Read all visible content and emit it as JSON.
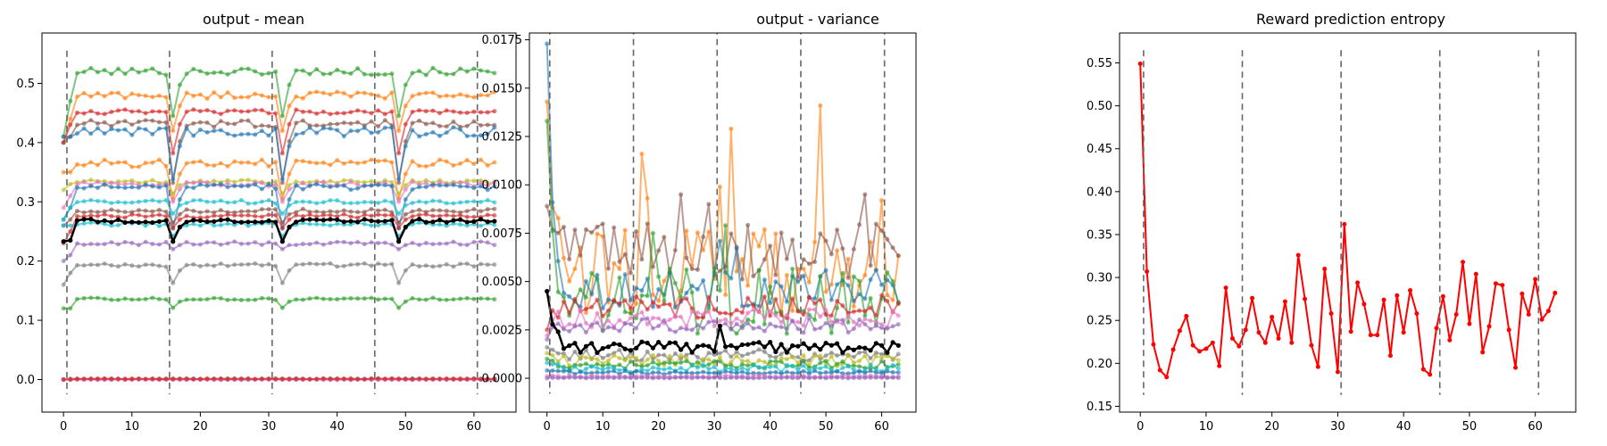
{
  "chart_data": [
    {
      "type": "line",
      "title": "output - mean",
      "xlabel": "",
      "ylabel": "",
      "xlim": [
        -3.15,
        66.15
      ],
      "ylim": [
        -0.055,
        0.585
      ],
      "xticks": [
        0,
        10,
        20,
        30,
        40,
        50,
        60
      ],
      "yticks": [
        0.0,
        0.1,
        0.2,
        0.3,
        0.4,
        0.5
      ],
      "ytick_labels": [
        "0.0",
        "0.1",
        "0.2",
        "0.3",
        "0.4",
        "0.5"
      ],
      "episode_boundaries": [
        0.5,
        15.5,
        30.5,
        45.5,
        60.5
      ],
      "boundary_range": [
        -0.025,
        0.555
      ],
      "n_points": 64,
      "dip_steps": [
        16,
        32,
        49
      ],
      "series": [
        {
          "color": "#2ca02c",
          "alpha": 0.6,
          "base": 0.52,
          "dip": 0.075,
          "noise": 0.006,
          "start": 0.41,
          "start_step": 0.47
        },
        {
          "color": "#ff7f0e",
          "alpha": 0.6,
          "base": 0.48,
          "dip": 0.06,
          "noise": 0.006,
          "start": 0.4,
          "start_step": 0.44
        },
        {
          "color": "#d62728",
          "alpha": 0.6,
          "base": 0.452,
          "dip": 0.07,
          "noise": 0.004,
          "start": 0.4,
          "start_step": 0.43
        },
        {
          "color": "#8c564b",
          "alpha": 0.6,
          "base": 0.432,
          "dip": 0.1,
          "noise": 0.006,
          "start": 0.4,
          "start_step": 0.41
        },
        {
          "color": "#1f77b4",
          "alpha": 0.6,
          "base": 0.418,
          "dip": 0.08,
          "noise": 0.008,
          "start": 0.41,
          "start_step": 0.41
        },
        {
          "color": "#ff7f0e",
          "alpha": 0.6,
          "base": 0.365,
          "dip": 0.06,
          "noise": 0.006,
          "start": 0.35,
          "start_step": 0.35
        },
        {
          "color": "#bcbd22",
          "alpha": 0.6,
          "base": 0.334,
          "dip": 0.02,
          "noise": 0.003,
          "start": 0.32,
          "start_step": 0.33
        },
        {
          "color": "#e377c2",
          "alpha": 0.6,
          "base": 0.33,
          "dip": 0.03,
          "noise": 0.004,
          "start": 0.29,
          "start_step": 0.31
        },
        {
          "color": "#1f77b4",
          "alpha": 0.6,
          "base": 0.325,
          "dip": 0.07,
          "noise": 0.005,
          "start": 0.27,
          "start_step": 0.29
        },
        {
          "color": "#17becf",
          "alpha": 0.6,
          "base": 0.3,
          "dip": 0.02,
          "noise": 0.003,
          "start": 0.27,
          "start_step": 0.29
        },
        {
          "color": "#8c564b",
          "alpha": 0.6,
          "base": 0.285,
          "dip": 0.02,
          "noise": 0.003,
          "start": 0.26,
          "start_step": 0.27
        },
        {
          "color": "#d62728",
          "alpha": 0.6,
          "base": 0.276,
          "dip": 0.02,
          "noise": 0.003,
          "start": 0.23,
          "start_step": 0.25
        },
        {
          "color": "#17becf",
          "alpha": 0.6,
          "base": 0.262,
          "dip": 0.02,
          "noise": 0.003,
          "start": 0.26,
          "start_step": 0.26
        },
        {
          "color": "#9467bd",
          "alpha": 0.6,
          "base": 0.23,
          "dip": 0.01,
          "noise": 0.003,
          "start": 0.2,
          "start_step": 0.21
        },
        {
          "color": "#7f7f7f",
          "alpha": 0.6,
          "base": 0.193,
          "dip": 0.03,
          "noise": 0.003,
          "start": 0.16,
          "start_step": 0.18
        },
        {
          "color": "#2ca02c",
          "alpha": 0.6,
          "base": 0.136,
          "dip": 0.015,
          "noise": 0.002,
          "start": 0.12,
          "start_step": 0.12
        },
        {
          "color": "#1f77b4",
          "alpha": 0.6,
          "base": 0.001,
          "dip": 0.0,
          "noise": 0.0008,
          "start": 0.0,
          "start_step": 0.001
        },
        {
          "color": "#ff7f0e",
          "alpha": 0.6,
          "base": 0.001,
          "dip": 0.0,
          "noise": 0.0008,
          "start": 0.0,
          "start_step": 0.001
        },
        {
          "color": "#9467bd",
          "alpha": 0.6,
          "base": 0.0,
          "dip": 0.0,
          "noise": 0.0006,
          "start": 0.0,
          "start_step": 0.0
        },
        {
          "color": "#e377c2",
          "alpha": 0.6,
          "base": 0.0,
          "dip": 0.0,
          "noise": 0.0006,
          "start": 0.0,
          "start_step": 0.0
        },
        {
          "color": "#d62728",
          "alpha": 0.6,
          "base": 0.001,
          "dip": 0.0,
          "noise": 0.0006,
          "start": 0.0,
          "start_step": 0.0
        },
        {
          "color": "#000000",
          "alpha": 1.0,
          "base": 0.268,
          "dip": 0.035,
          "noise": 0.003,
          "start": 0.233,
          "start_step": 0.235,
          "thick": true
        }
      ]
    },
    {
      "type": "line",
      "title": "output - variance",
      "xlabel": "",
      "ylabel": "",
      "xlim": [
        -3.15,
        66.15
      ],
      "ylim": [
        -0.00175,
        0.01785
      ],
      "xticks": [
        0,
        10,
        20,
        30,
        40,
        50,
        60
      ],
      "yticks": [
        0.0,
        0.0025,
        0.005,
        0.0075,
        0.01,
        0.0125,
        0.015,
        0.0175
      ],
      "ytick_labels": [
        "0.0000",
        "0.0025",
        "0.0050",
        "0.0075",
        "0.0100",
        "0.0125",
        "0.0150",
        "0.0175"
      ],
      "episode_boundaries": [
        0.5,
        15.5,
        30.5,
        45.5,
        60.5
      ],
      "boundary_range": [
        -0.0008,
        0.0181
      ],
      "n_points": 64,
      "series": [
        {
          "color": "#ff7f0e",
          "alpha": 0.6,
          "start": 0.0143,
          "values_hint": "spiky",
          "base": 0.0055,
          "amp": 0.0022,
          "peaks": {
            "17": 0.0116,
            "18": 0.0093,
            "31": 0.0099,
            "33": 0.0129,
            "49": 0.0141,
            "60": 0.0092
          }
        },
        {
          "color": "#8c564b",
          "alpha": 0.6,
          "start": 0.0089,
          "base": 0.0066,
          "amp": 0.0015,
          "peaks": {
            "24": 0.0095,
            "29": 0.009,
            "57": 0.0095
          }
        },
        {
          "color": "#1f77b4",
          "alpha": 0.6,
          "start": 0.0173,
          "base": 0.0046,
          "amp": 0.001,
          "peaks": {
            "31": 0.0071,
            "34": 0.0067
          }
        },
        {
          "color": "#2ca02c",
          "alpha": 0.6,
          "start": 0.0133,
          "base": 0.004,
          "amp": 0.0017,
          "peaks": {
            "19": 0.0075,
            "32": 0.0079
          }
        },
        {
          "color": "#d62728",
          "alpha": 0.6,
          "start": 0.0025,
          "base": 0.0037,
          "amp": 0.0006,
          "peaks": {}
        },
        {
          "color": "#e377c2",
          "alpha": 0.6,
          "start": 0.0022,
          "base": 0.0031,
          "amp": 0.0005,
          "peaks": {}
        },
        {
          "color": "#9467bd",
          "alpha": 0.6,
          "start": 0.002,
          "base": 0.0027,
          "amp": 0.0004,
          "peaks": {}
        },
        {
          "color": "#7f7f7f",
          "alpha": 0.6,
          "start": 0.0016,
          "base": 0.0012,
          "amp": 0.0003,
          "peaks": {}
        },
        {
          "color": "#bcbd22",
          "alpha": 0.6,
          "start": 0.0013,
          "base": 0.0009,
          "amp": 0.0003,
          "peaks": {}
        },
        {
          "color": "#2ca02c",
          "alpha": 0.6,
          "start": 0.001,
          "base": 0.0007,
          "amp": 0.0002,
          "peaks": {}
        },
        {
          "color": "#17becf",
          "alpha": 0.6,
          "start": 0.0008,
          "base": 0.0005,
          "amp": 0.0002,
          "peaks": {}
        },
        {
          "color": "#1f77b4",
          "alpha": 0.6,
          "start": 0.0004,
          "base": 0.0003,
          "amp": 0.0001,
          "peaks": {}
        },
        {
          "color": "#e377c2",
          "alpha": 0.6,
          "start": 0.0001,
          "base": 0.0001,
          "amp": 5e-05,
          "peaks": {}
        },
        {
          "color": "#9467bd",
          "alpha": 0.6,
          "start": 0.0,
          "base": 2e-05,
          "amp": 2e-05,
          "peaks": {}
        },
        {
          "color": "#000000",
          "alpha": 1.0,
          "start": 0.0045,
          "base": 0.0016,
          "amp": 0.0003,
          "peaks": {
            "2": 0.0024,
            "31": 0.0027
          },
          "thick": true
        }
      ]
    },
    {
      "type": "line",
      "title": "Reward prediction entropy",
      "xlabel": "",
      "ylabel": "",
      "xlim": [
        -3.15,
        66.15
      ],
      "ylim": [
        0.1432,
        0.5848
      ],
      "xticks": [
        0,
        10,
        20,
        30,
        40,
        50,
        60
      ],
      "yticks": [
        0.15,
        0.2,
        0.25,
        0.3,
        0.35,
        0.4,
        0.45,
        0.5,
        0.55
      ],
      "ytick_labels": [
        "0.15",
        "0.20",
        "0.25",
        "0.30",
        "0.35",
        "0.40",
        "0.45",
        "0.50",
        "0.55"
      ],
      "episode_boundaries": [
        0.5,
        15.5,
        30.5,
        45.5,
        60.5
      ],
      "boundary_range": [
        0.1632,
        0.5648
      ],
      "x": [
        0,
        1,
        2,
        3,
        4,
        5,
        6,
        7,
        8,
        9,
        10,
        11,
        12,
        13,
        14,
        15,
        16,
        17,
        18,
        19,
        20,
        21,
        22,
        23,
        24,
        25,
        26,
        27,
        28,
        29,
        30,
        31,
        32,
        33,
        34,
        35,
        36,
        37,
        38,
        39,
        40,
        41,
        42,
        43,
        44,
        45,
        46,
        47,
        48,
        49,
        50,
        51,
        52,
        53,
        54,
        55,
        56,
        57,
        58,
        59,
        60,
        61,
        62,
        63
      ],
      "series": [
        {
          "color": "#ff0000",
          "alpha": 1.0,
          "values": [
            0.549,
            0.307,
            0.222,
            0.192,
            0.184,
            0.216,
            0.238,
            0.255,
            0.221,
            0.214,
            0.217,
            0.224,
            0.197,
            0.288,
            0.229,
            0.22,
            0.239,
            0.276,
            0.236,
            0.224,
            0.254,
            0.229,
            0.272,
            0.224,
            0.326,
            0.275,
            0.221,
            0.196,
            0.31,
            0.258,
            0.19,
            0.362,
            0.237,
            0.294,
            0.269,
            0.233,
            0.233,
            0.274,
            0.209,
            0.279,
            0.236,
            0.285,
            0.258,
            0.193,
            0.187,
            0.241,
            0.278,
            0.227,
            0.257,
            0.318,
            0.246,
            0.304,
            0.213,
            0.243,
            0.293,
            0.291,
            0.239,
            0.195,
            0.281,
            0.257,
            0.298,
            0.251,
            0.261,
            0.282
          ]
        }
      ]
    }
  ]
}
